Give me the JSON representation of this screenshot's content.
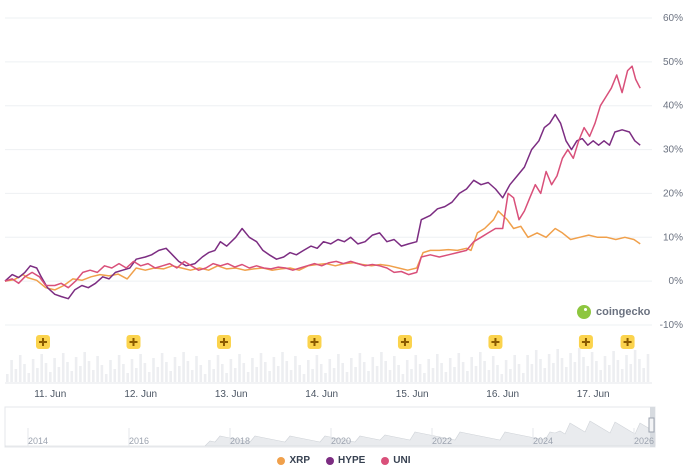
{
  "chart_data": {
    "type": "line",
    "title": "",
    "xlabel": "",
    "ylabel": "",
    "ylim": [
      -10,
      60
    ],
    "y_ticks": [
      -10,
      0,
      10,
      20,
      30,
      40,
      50,
      60
    ],
    "y_tick_labels": [
      "-10%",
      "0%",
      "10%",
      "20%",
      "30%",
      "40%",
      "50%",
      "60%"
    ],
    "y_axis_side": "right",
    "grid": true,
    "legend_position": "bottom-center",
    "x_range": [
      10.5,
      17.65
    ],
    "x_tick_labels": [
      "11. Jun",
      "12. Jun",
      "13. Jun",
      "14. Jun",
      "15. Jun",
      "16. Jun",
      "17. Jun"
    ],
    "x_tick_values": [
      11,
      12,
      13,
      14,
      15,
      16,
      17
    ],
    "event_marker_days": [
      10.92,
      11.92,
      12.92,
      13.92,
      14.92,
      15.92,
      16.92,
      17.38
    ],
    "navigator_year_labels": [
      "2014",
      "2016",
      "2018",
      "2020",
      "2022",
      "2024",
      "2026"
    ],
    "series": [
      {
        "name": "XRP",
        "color": "#f0a04b",
        "points": [
          [
            10.5,
            0
          ],
          [
            10.6,
            0.3
          ],
          [
            10.7,
            1.5
          ],
          [
            10.75,
            0.8
          ],
          [
            10.85,
            0.2
          ],
          [
            10.95,
            -1.5
          ],
          [
            11.05,
            -2
          ],
          [
            11.15,
            -1
          ],
          [
            11.25,
            0.5
          ],
          [
            11.35,
            0.2
          ],
          [
            11.45,
            1
          ],
          [
            11.55,
            1.5
          ],
          [
            11.65,
            1.2
          ],
          [
            11.75,
            1.6
          ],
          [
            11.85,
            0.5
          ],
          [
            11.95,
            3
          ],
          [
            12.05,
            2.5
          ],
          [
            12.15,
            3
          ],
          [
            12.25,
            2.8
          ],
          [
            12.35,
            3.5
          ],
          [
            12.45,
            3
          ],
          [
            12.55,
            2.5
          ],
          [
            12.65,
            3
          ],
          [
            12.75,
            2.5
          ],
          [
            12.85,
            3.5
          ],
          [
            12.95,
            2.8
          ],
          [
            13.05,
            3
          ],
          [
            13.15,
            2.5
          ],
          [
            13.25,
            2.8
          ],
          [
            13.35,
            3
          ],
          [
            13.45,
            2.5
          ],
          [
            13.55,
            2.8
          ],
          [
            13.65,
            3
          ],
          [
            13.75,
            2.5
          ],
          [
            13.85,
            3.5
          ],
          [
            13.95,
            3.8
          ],
          [
            14.05,
            4
          ],
          [
            14.15,
            3.5
          ],
          [
            14.25,
            4
          ],
          [
            14.35,
            4.2
          ],
          [
            14.45,
            3.8
          ],
          [
            14.55,
            3.5
          ],
          [
            14.65,
            3.8
          ],
          [
            14.75,
            3.5
          ],
          [
            14.85,
            3
          ],
          [
            14.95,
            2.5
          ],
          [
            15.05,
            3
          ],
          [
            15.12,
            6.5
          ],
          [
            15.2,
            7
          ],
          [
            15.3,
            7
          ],
          [
            15.4,
            7.2
          ],
          [
            15.5,
            7
          ],
          [
            15.6,
            7.5
          ],
          [
            15.65,
            7
          ],
          [
            15.72,
            11
          ],
          [
            15.8,
            12
          ],
          [
            15.9,
            14
          ],
          [
            15.95,
            16
          ],
          [
            16.05,
            14
          ],
          [
            16.12,
            12
          ],
          [
            16.2,
            12.5
          ],
          [
            16.28,
            10
          ],
          [
            16.38,
            11
          ],
          [
            16.48,
            10
          ],
          [
            16.58,
            12
          ],
          [
            16.66,
            11
          ],
          [
            16.75,
            9.5
          ],
          [
            16.85,
            10
          ],
          [
            16.95,
            10.5
          ],
          [
            17.05,
            10
          ],
          [
            17.15,
            10
          ],
          [
            17.25,
            9.5
          ],
          [
            17.35,
            10
          ],
          [
            17.45,
            9.5
          ],
          [
            17.52,
            8.5
          ]
        ]
      },
      {
        "name": "HYPE",
        "color": "#7c2d82",
        "points": [
          [
            10.5,
            0
          ],
          [
            10.58,
            1.5
          ],
          [
            10.65,
            0.8
          ],
          [
            10.72,
            2
          ],
          [
            10.78,
            3.5
          ],
          [
            10.85,
            3
          ],
          [
            10.9,
            1
          ],
          [
            10.97,
            -1.5
          ],
          [
            11.05,
            -3
          ],
          [
            11.12,
            -3.5
          ],
          [
            11.2,
            -4
          ],
          [
            11.27,
            -2
          ],
          [
            11.35,
            -1
          ],
          [
            11.42,
            -1.5
          ],
          [
            11.5,
            -0.5
          ],
          [
            11.58,
            1
          ],
          [
            11.65,
            0.5
          ],
          [
            11.72,
            2
          ],
          [
            11.8,
            2.5
          ],
          [
            11.88,
            3
          ],
          [
            11.95,
            5
          ],
          [
            12.05,
            5.5
          ],
          [
            12.12,
            6
          ],
          [
            12.2,
            7
          ],
          [
            12.28,
            7.5
          ],
          [
            12.35,
            6
          ],
          [
            12.42,
            4.5
          ],
          [
            12.5,
            3.5
          ],
          [
            12.6,
            4
          ],
          [
            12.68,
            5.5
          ],
          [
            12.75,
            6.5
          ],
          [
            12.82,
            7
          ],
          [
            12.88,
            9
          ],
          [
            12.95,
            8
          ],
          [
            13.05,
            10
          ],
          [
            13.12,
            12
          ],
          [
            13.2,
            10
          ],
          [
            13.28,
            9
          ],
          [
            13.35,
            7
          ],
          [
            13.42,
            6
          ],
          [
            13.5,
            5
          ],
          [
            13.58,
            5.5
          ],
          [
            13.65,
            6.5
          ],
          [
            13.72,
            6
          ],
          [
            13.8,
            7
          ],
          [
            13.88,
            8
          ],
          [
            13.95,
            7.5
          ],
          [
            14.02,
            9
          ],
          [
            14.1,
            8.5
          ],
          [
            14.18,
            9.5
          ],
          [
            14.25,
            9
          ],
          [
            14.32,
            10
          ],
          [
            14.4,
            8.5
          ],
          [
            14.48,
            9
          ],
          [
            14.56,
            10.5
          ],
          [
            14.64,
            11
          ],
          [
            14.72,
            9
          ],
          [
            14.8,
            9.5
          ],
          [
            14.88,
            8
          ],
          [
            14.96,
            8.5
          ],
          [
            15.05,
            9
          ],
          [
            15.1,
            14
          ],
          [
            15.2,
            15
          ],
          [
            15.28,
            16.5
          ],
          [
            15.36,
            17
          ],
          [
            15.44,
            18
          ],
          [
            15.52,
            20
          ],
          [
            15.6,
            21
          ],
          [
            15.68,
            23
          ],
          [
            15.76,
            22
          ],
          [
            15.84,
            22.5
          ],
          [
            15.92,
            21
          ],
          [
            16.0,
            19
          ],
          [
            16.08,
            22
          ],
          [
            16.16,
            24
          ],
          [
            16.24,
            26
          ],
          [
            16.32,
            30
          ],
          [
            16.4,
            32
          ],
          [
            16.46,
            35
          ],
          [
            16.52,
            36
          ],
          [
            16.58,
            38
          ],
          [
            16.64,
            36
          ],
          [
            16.7,
            32
          ],
          [
            16.76,
            30
          ],
          [
            16.82,
            32
          ],
          [
            16.88,
            32.5
          ],
          [
            16.94,
            31
          ],
          [
            17.0,
            32
          ],
          [
            17.06,
            31
          ],
          [
            17.12,
            32
          ],
          [
            17.18,
            31
          ],
          [
            17.24,
            34
          ],
          [
            17.32,
            34.5
          ],
          [
            17.4,
            34
          ],
          [
            17.46,
            32
          ],
          [
            17.52,
            31
          ]
        ]
      },
      {
        "name": "UNI",
        "color": "#d9507a",
        "points": [
          [
            10.5,
            0
          ],
          [
            10.58,
            0.5
          ],
          [
            10.65,
            -0.5
          ],
          [
            10.72,
            1
          ],
          [
            10.8,
            2
          ],
          [
            10.88,
            1
          ],
          [
            10.95,
            -1
          ],
          [
            11.05,
            -1
          ],
          [
            11.12,
            -0.5
          ],
          [
            11.2,
            -1.5
          ],
          [
            11.28,
            0
          ],
          [
            11.36,
            2
          ],
          [
            11.44,
            2.5
          ],
          [
            11.52,
            2
          ],
          [
            11.6,
            3.5
          ],
          [
            11.68,
            3
          ],
          [
            11.76,
            4
          ],
          [
            11.84,
            3
          ],
          [
            11.92,
            4.5
          ],
          [
            12.0,
            3.5
          ],
          [
            12.08,
            4
          ],
          [
            12.16,
            3
          ],
          [
            12.24,
            3.5
          ],
          [
            12.32,
            4
          ],
          [
            12.4,
            3
          ],
          [
            12.48,
            4.5
          ],
          [
            12.56,
            3.5
          ],
          [
            12.64,
            2.5
          ],
          [
            12.72,
            3
          ],
          [
            12.8,
            4
          ],
          [
            12.88,
            3.5
          ],
          [
            12.96,
            4
          ],
          [
            13.04,
            3.2
          ],
          [
            13.12,
            3.8
          ],
          [
            13.2,
            3
          ],
          [
            13.28,
            3.5
          ],
          [
            13.36,
            3
          ],
          [
            13.44,
            2.8
          ],
          [
            13.52,
            3.2
          ],
          [
            13.6,
            3
          ],
          [
            13.68,
            2.5
          ],
          [
            13.76,
            3
          ],
          [
            13.84,
            3.5
          ],
          [
            13.92,
            4
          ],
          [
            14.0,
            3.5
          ],
          [
            14.08,
            4.2
          ],
          [
            14.16,
            4.5
          ],
          [
            14.24,
            4
          ],
          [
            14.32,
            4.5
          ],
          [
            14.4,
            4
          ],
          [
            14.48,
            3.5
          ],
          [
            14.56,
            3.8
          ],
          [
            14.64,
            3.5
          ],
          [
            14.72,
            3
          ],
          [
            14.8,
            2
          ],
          [
            14.88,
            2.2
          ],
          [
            14.96,
            1.5
          ],
          [
            15.05,
            2
          ],
          [
            15.1,
            5.5
          ],
          [
            15.2,
            6
          ],
          [
            15.3,
            5.5
          ],
          [
            15.4,
            6
          ],
          [
            15.5,
            6.5
          ],
          [
            15.6,
            7
          ],
          [
            15.68,
            9
          ],
          [
            15.76,
            10
          ],
          [
            15.84,
            11
          ],
          [
            15.92,
            12
          ],
          [
            16.0,
            12
          ],
          [
            16.06,
            20
          ],
          [
            16.12,
            19
          ],
          [
            16.18,
            14
          ],
          [
            16.24,
            16
          ],
          [
            16.3,
            19
          ],
          [
            16.36,
            22
          ],
          [
            16.42,
            20
          ],
          [
            16.48,
            25
          ],
          [
            16.54,
            22
          ],
          [
            16.6,
            24
          ],
          [
            16.66,
            28
          ],
          [
            16.72,
            30
          ],
          [
            16.78,
            28
          ],
          [
            16.84,
            32
          ],
          [
            16.9,
            35
          ],
          [
            16.96,
            33
          ],
          [
            17.02,
            36
          ],
          [
            17.08,
            40
          ],
          [
            17.14,
            42
          ],
          [
            17.2,
            44
          ],
          [
            17.26,
            47
          ],
          [
            17.32,
            43
          ],
          [
            17.38,
            48
          ],
          [
            17.43,
            49
          ],
          [
            17.47,
            46
          ],
          [
            17.52,
            44
          ]
        ]
      }
    ]
  },
  "watermark": "coingecko"
}
